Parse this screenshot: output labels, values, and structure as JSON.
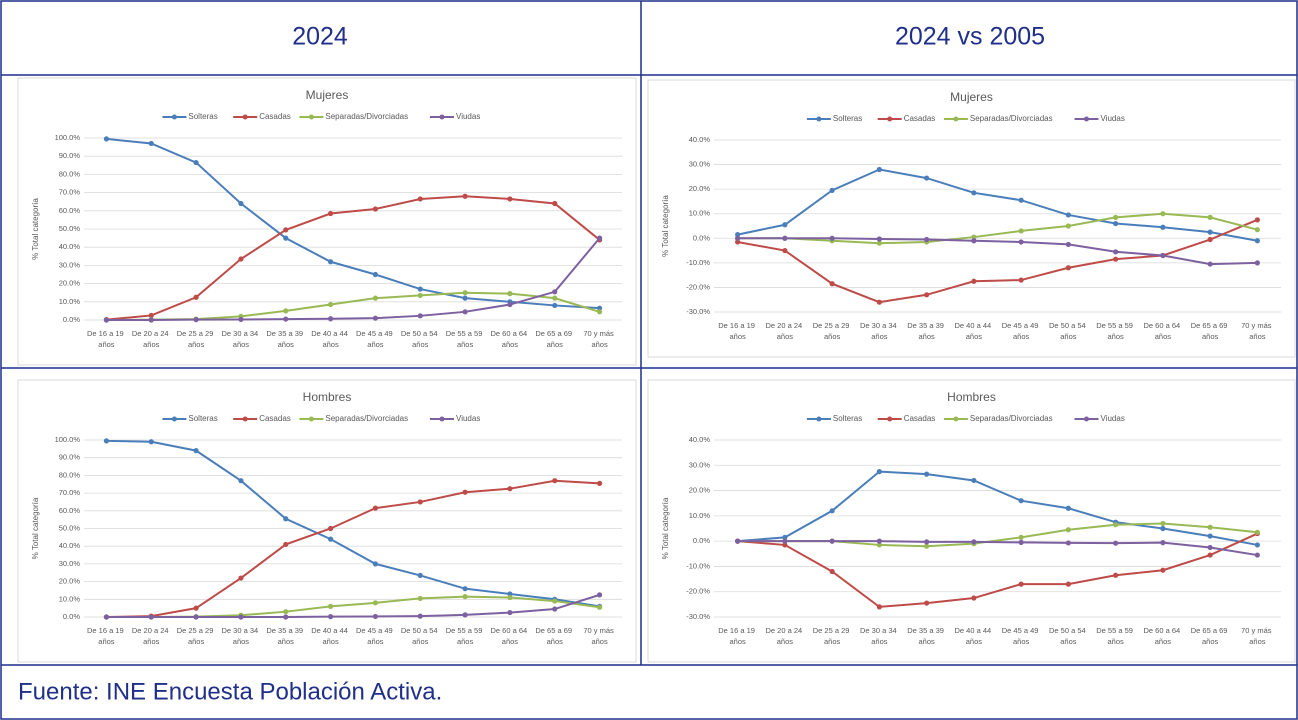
{
  "columns": [
    "2024",
    "2024 vs 2005"
  ],
  "source": "Fuente: INE Encuesta Población Activa.",
  "chart_data": [
    {
      "type": "line",
      "title": "Mujeres",
      "y_label": "% Total categoría",
      "categories": [
        "De 16 a 19 años",
        "De 20 a 24 años",
        "De 25 a 29 años",
        "De 30 a 34 años",
        "De 35 a 39 años",
        "De 40 a 44 años",
        "De 45 a 49 años",
        "De 50 a 54 años",
        "De 55 a 59 años",
        "De 60 a 64 años",
        "De 65 a 69 años",
        "70 y más años"
      ],
      "ylim": [
        0,
        100
      ],
      "yticks": [
        {
          "value": 0,
          "label": "0.0%"
        },
        {
          "value": 10,
          "label": "10.0%"
        },
        {
          "value": 20,
          "label": "20.0%"
        },
        {
          "value": 30,
          "label": "30.0%"
        },
        {
          "value": 40,
          "label": "40.0%"
        },
        {
          "value": 50,
          "label": "50.0%"
        },
        {
          "value": 60,
          "label": "60.0%"
        },
        {
          "value": 70,
          "label": "70.0%"
        },
        {
          "value": 80,
          "label": "80.0%"
        },
        {
          "value": 90,
          "label": "90.0%"
        },
        {
          "value": 100,
          "label": "100.0%"
        }
      ],
      "grid": true,
      "legend": "top",
      "series": [
        {
          "name": "Solteras",
          "color": "#4a7ebb",
          "values": [
            99.5,
            97,
            86.5,
            64,
            45,
            32,
            25,
            17,
            12,
            10,
            8,
            6.5
          ]
        },
        {
          "name": "Casadas",
          "color": "#be4b48",
          "values": [
            0.2,
            2.5,
            12.5,
            33.5,
            49.5,
            58.5,
            61,
            66.5,
            68,
            66.5,
            64,
            44
          ]
        },
        {
          "name": "Separadas/Divorciadas",
          "color": "#98b954",
          "values": [
            0,
            0.2,
            0.5,
            2,
            5,
            8.5,
            12,
            13.5,
            15,
            14.5,
            12,
            4.5
          ]
        },
        {
          "name": "Viudas",
          "color": "#7d60a0",
          "values": [
            0,
            0,
            0.2,
            0.3,
            0.5,
            0.7,
            1,
            2.3,
            4.5,
            8.5,
            15.5,
            45
          ]
        }
      ]
    },
    {
      "type": "line",
      "title": "Mujeres",
      "y_label": "% Total categoría",
      "categories": [
        "De 16 a 19 años",
        "De 20 a 24 años",
        "De 25 a 29 años",
        "De 30 a 34 años",
        "De 35 a 39 años",
        "De 40 a 44 años",
        "De 45 a 49 años",
        "De 50 a 54 años",
        "De 55 a 59 años",
        "De 60 a 64 años",
        "De 65 a 69 años",
        "70 y más años"
      ],
      "ylim": [
        -30,
        40
      ],
      "yticks": [
        {
          "value": -30,
          "label": "-30.0%"
        },
        {
          "value": -20,
          "label": "-20.0%"
        },
        {
          "value": -10,
          "label": "-10.0%"
        },
        {
          "value": 0,
          "label": "0.0%"
        },
        {
          "value": 10,
          "label": "10.0%"
        },
        {
          "value": 20,
          "label": "20.0%"
        },
        {
          "value": 30,
          "label": "30.0%"
        },
        {
          "value": 40,
          "label": "40.0%"
        }
      ],
      "grid": true,
      "legend": "top",
      "series": [
        {
          "name": "Solteras",
          "color": "#4a7ebb",
          "values": [
            1.5,
            5.5,
            19.5,
            28,
            24.5,
            18.5,
            15.5,
            9.5,
            6,
            4.5,
            2.5,
            -1
          ]
        },
        {
          "name": "Casadas",
          "color": "#be4b48",
          "values": [
            -1.5,
            -5,
            -18.5,
            -26,
            -23,
            -17.5,
            -17,
            -12,
            -8.5,
            -7,
            -0.5,
            7.5
          ]
        },
        {
          "name": "Separadas/Divorciadas",
          "color": "#98b954",
          "values": [
            0,
            0,
            -1,
            -2,
            -1.5,
            0.5,
            3,
            5,
            8.5,
            10,
            8.5,
            3.5
          ]
        },
        {
          "name": "Viudas",
          "color": "#7d60a0",
          "values": [
            0,
            0,
            0,
            -0.3,
            -0.5,
            -1,
            -1.5,
            -2.5,
            -5.5,
            -7,
            -10.5,
            -10
          ]
        }
      ]
    },
    {
      "type": "line",
      "title": "Hombres",
      "y_label": "% Total categoría",
      "categories": [
        "De 16 a 19 años",
        "De 20 a 24 años",
        "De 25 a 29 años",
        "De 30 a 34 años",
        "De 35 a 39 años",
        "De 40 a 44 años",
        "De 45 a 49 años",
        "De 50 a 54 años",
        "De 55 a 59 años",
        "De 60 a 64 años",
        "De 65 a 69 años",
        "70 y más años"
      ],
      "ylim": [
        0,
        100
      ],
      "yticks": [
        {
          "value": 0,
          "label": "0.0%"
        },
        {
          "value": 10,
          "label": "10.0%"
        },
        {
          "value": 20,
          "label": "20.0%"
        },
        {
          "value": 30,
          "label": "30.0%"
        },
        {
          "value": 40,
          "label": "40.0%"
        },
        {
          "value": 50,
          "label": "50.0%"
        },
        {
          "value": 60,
          "label": "60.0%"
        },
        {
          "value": 70,
          "label": "70.0%"
        },
        {
          "value": 80,
          "label": "80.0%"
        },
        {
          "value": 90,
          "label": "90.0%"
        },
        {
          "value": 100,
          "label": "100.0%"
        }
      ],
      "grid": true,
      "legend": "top",
      "series": [
        {
          "name": "Solteras",
          "color": "#4a7ebb",
          "values": [
            99.5,
            99,
            94,
            77,
            55.5,
            44,
            30,
            23.5,
            16,
            13,
            10,
            6
          ]
        },
        {
          "name": "Casadas",
          "color": "#be4b48",
          "values": [
            0,
            0.5,
            5,
            22,
            41,
            50,
            61.5,
            65,
            70.5,
            72.5,
            77,
            75.5
          ]
        },
        {
          "name": "Separadas/Divorciadas",
          "color": "#98b954",
          "values": [
            0,
            0,
            0.2,
            1,
            3,
            6,
            8,
            10.5,
            11.5,
            11,
            9,
            5.5
          ]
        },
        {
          "name": "Viudas",
          "color": "#7d60a0",
          "values": [
            0,
            0,
            0,
            0,
            0,
            0.2,
            0.3,
            0.5,
            1.2,
            2.5,
            4.5,
            12.5
          ]
        }
      ]
    },
    {
      "type": "line",
      "title": "Hombres",
      "y_label": "% Total categoría",
      "categories": [
        "De 16 a 19 años",
        "De 20 a 24 años",
        "De 25 a 29 años",
        "De 30 a 34 años",
        "De 35 a 39 años",
        "De 40 a 44 años",
        "De 45 a 49 años",
        "De 50 a 54 años",
        "De 55 a 59 años",
        "De 60 a 64 años",
        "De 65 a 69 años",
        "70 y más años"
      ],
      "ylim": [
        -30,
        40
      ],
      "yticks": [
        {
          "value": -30,
          "label": "-30.0%"
        },
        {
          "value": -20,
          "label": "-20.0%"
        },
        {
          "value": -10,
          "label": "-10.0%"
        },
        {
          "value": 0,
          "label": "0.0%"
        },
        {
          "value": 10,
          "label": "10.0%"
        },
        {
          "value": 20,
          "label": "20.0%"
        },
        {
          "value": 30,
          "label": "30.0%"
        },
        {
          "value": 40,
          "label": "40.0%"
        }
      ],
      "grid": true,
      "legend": "top",
      "series": [
        {
          "name": "Solteras",
          "color": "#4a7ebb",
          "values": [
            0,
            1.5,
            12,
            27.5,
            26.5,
            24,
            16,
            13,
            7.5,
            5,
            2,
            -1.5
          ]
        },
        {
          "name": "Casadas",
          "color": "#be4b48",
          "values": [
            0,
            -1.5,
            -12,
            -26,
            -24.5,
            -22.5,
            -17,
            -17,
            -13.5,
            -11.5,
            -5.5,
            3
          ]
        },
        {
          "name": "Separadas/Divorciadas",
          "color": "#98b954",
          "values": [
            0,
            0,
            0,
            -1.5,
            -2,
            -1,
            1.5,
            4.5,
            6.5,
            7,
            5.5,
            3.5
          ]
        },
        {
          "name": "Viudas",
          "color": "#7d60a0",
          "values": [
            0,
            0,
            0,
            0,
            -0.3,
            -0.3,
            -0.5,
            -0.7,
            -0.8,
            -0.6,
            -2.5,
            -5.5
          ]
        }
      ]
    }
  ]
}
